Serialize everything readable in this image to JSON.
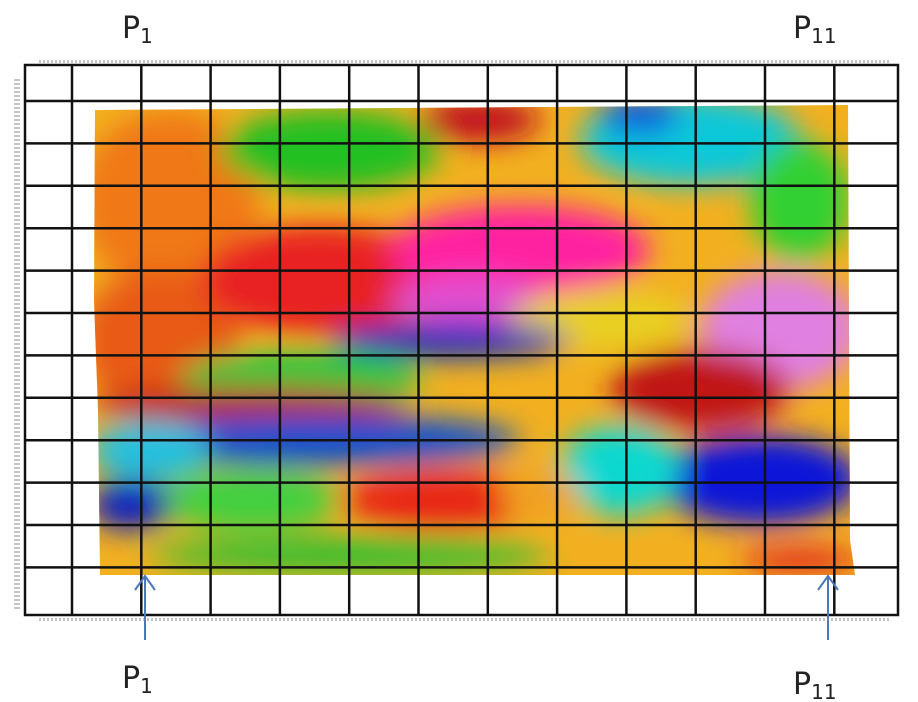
{
  "labels": {
    "top_left": {
      "base": "P",
      "sub": "1"
    },
    "top_right": {
      "base": "P",
      "sub": "11"
    },
    "bottom_left": {
      "base": "P",
      "sub": "1"
    },
    "bottom_right": {
      "base": "P",
      "sub": "11"
    }
  }
}
